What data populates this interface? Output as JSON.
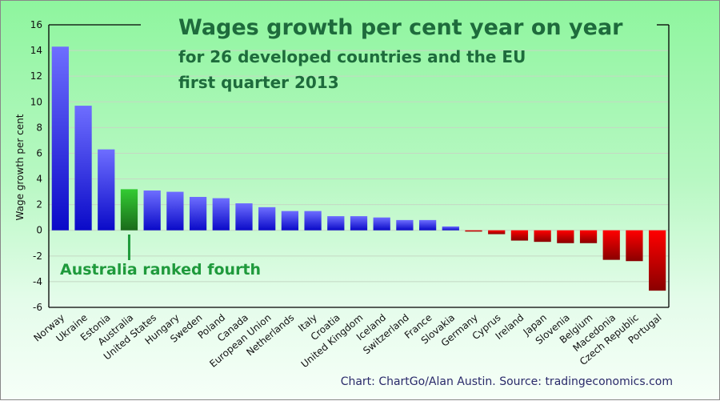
{
  "chart_data": {
    "type": "bar",
    "title": "Wages growth per cent year on year",
    "subtitle_lines": [
      "for 26 developed countries and the EU",
      "first quarter 2013"
    ],
    "xlabel": "",
    "ylabel": "Wage growth per cent",
    "ylim": [
      -6,
      16
    ],
    "yticks": [
      16,
      14,
      12,
      10,
      8,
      6,
      4,
      2,
      0,
      -2,
      -4,
      -6
    ],
    "grid": true,
    "categories": [
      "Norway",
      "Ukraine",
      "Estonia",
      "Australia",
      "United States",
      "Hungary",
      "Sweden",
      "Poland",
      "Canada",
      "European Union",
      "Netherlands",
      "Italy",
      "Croatia",
      "United Kingdom",
      "Iceland",
      "Switzerland",
      "France",
      "Slovakia",
      "Germany",
      "Cyprus",
      "Ireland",
      "Japan",
      "Slovenia",
      "Belgium",
      "Macedonia",
      "Czech Republic",
      "Portugal"
    ],
    "values": [
      14.3,
      9.7,
      6.3,
      3.2,
      3.1,
      3.0,
      2.6,
      2.5,
      2.1,
      1.8,
      1.5,
      1.5,
      1.1,
      1.1,
      1.0,
      0.8,
      0.8,
      0.3,
      -0.1,
      -0.3,
      -0.8,
      -0.9,
      -1.0,
      -1.0,
      -2.3,
      -2.4,
      -4.7
    ],
    "highlight": "Australia",
    "annotation": "Australia ranked fourth",
    "source": "Chart: ChartGo/Alan Austin. Source: tradingeconomics.com",
    "colors": {
      "positive_top": "#6e6eff",
      "positive_bottom": "#0a0ac8",
      "negative_top": "#ff0000",
      "negative_bottom": "#8a0000",
      "highlight_top": "#33cc33",
      "highlight_bottom": "#1a6b1a",
      "title": "#1e6b3c",
      "annotation": "#1f9a3c",
      "gridline": "#c4d8c4"
    }
  }
}
